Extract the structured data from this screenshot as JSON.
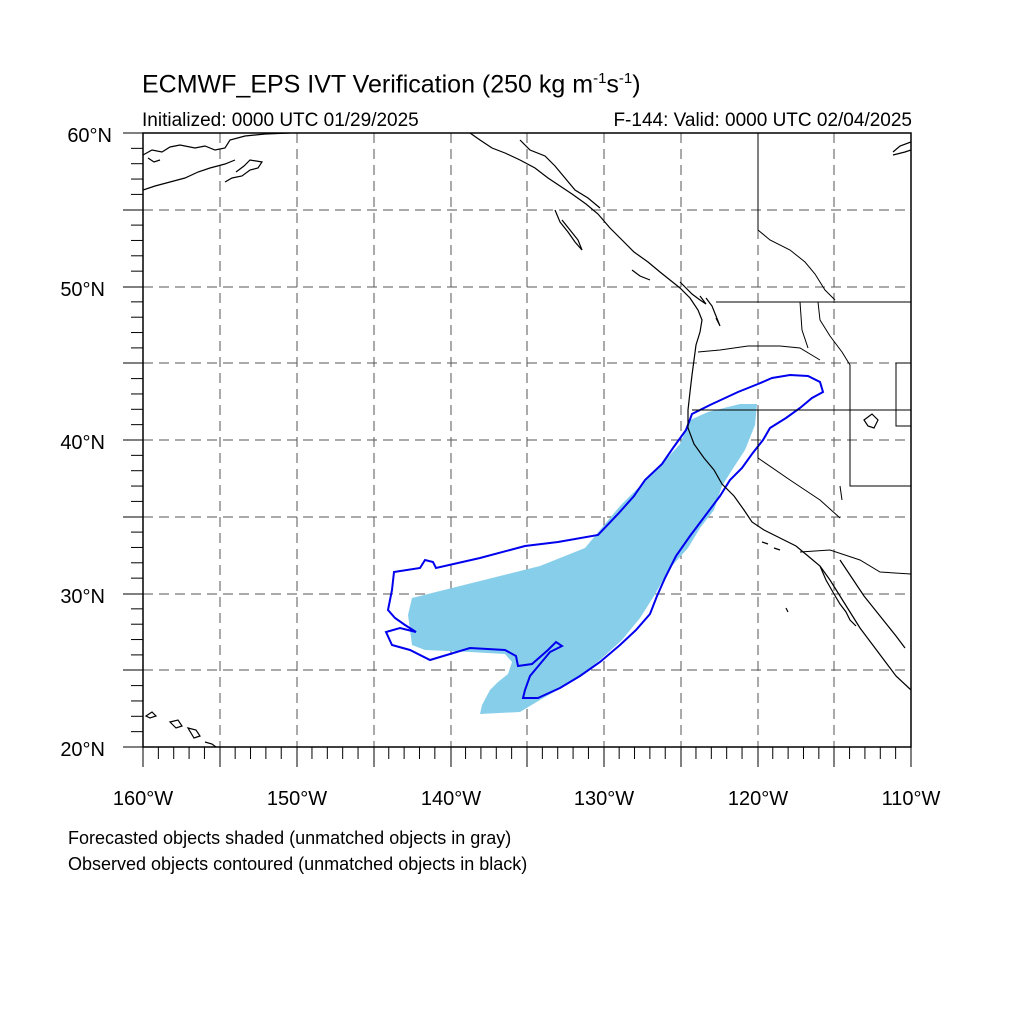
{
  "title": {
    "main": "ECMWF_EPS IVT Verification (250 kg m",
    "exp1": "-1",
    "mid": "s",
    "exp2": "-1",
    "close": ")"
  },
  "subtitle": {
    "initialized": "Initialized: 0000 UTC 01/29/2025",
    "valid": "F-144: Valid: 0000 UTC 02/04/2025"
  },
  "axes": {
    "lon_labels": [
      "160°W",
      "150°W",
      "140°W",
      "130°W",
      "120°W",
      "110°W"
    ],
    "lat_labels": [
      "60°N",
      "50°N",
      "40°N",
      "30°N",
      "20°N"
    ],
    "lon_range": [
      -160,
      -110
    ],
    "lat_range": [
      20,
      60
    ],
    "grid": "dashed every 5°"
  },
  "notes": {
    "line1": "Forecasted objects shaded (unmatched objects in gray)",
    "line2": "Observed objects contoured (unmatched objects in black)"
  },
  "colors": {
    "forecast_fill": "#87ceeb",
    "observed_contour": "#0000ee",
    "coastline": "#000000",
    "grid": "#555555"
  }
}
